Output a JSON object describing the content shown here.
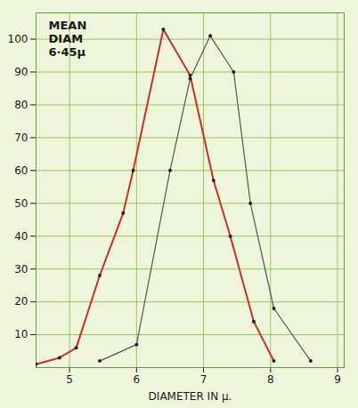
{
  "chart_data": {
    "type": "line",
    "title": "MEAN DIAM 6·45μ",
    "x_label": "DIAMETER IN μ.",
    "xlim": [
      4.5,
      9.1
    ],
    "ylim": [
      0,
      108
    ],
    "xticks": [
      5,
      6,
      7,
      8,
      9
    ],
    "yticks": [
      10,
      20,
      30,
      40,
      50,
      60,
      70,
      80,
      90,
      100
    ],
    "grid": true,
    "series": [
      {
        "color": "#c8322a",
        "marker": "circle",
        "line_style": "solid",
        "x": [
          4.5,
          4.85,
          5.1,
          5.45,
          5.8,
          5.95,
          6.4,
          6.8,
          7.15,
          7.4,
          7.75,
          8.05
        ],
        "values": [
          1,
          3,
          6,
          28,
          47,
          60,
          103,
          89,
          57,
          40,
          14,
          2
        ]
      },
      {
        "color": "#555555",
        "marker": "circle",
        "line_style": "solid",
        "x": [
          5.45,
          6.0,
          6.5,
          6.8,
          7.1,
          7.45,
          7.7,
          8.05,
          8.6
        ],
        "values": [
          2,
          7,
          60,
          88,
          101,
          90,
          50,
          18,
          2
        ]
      }
    ]
  }
}
